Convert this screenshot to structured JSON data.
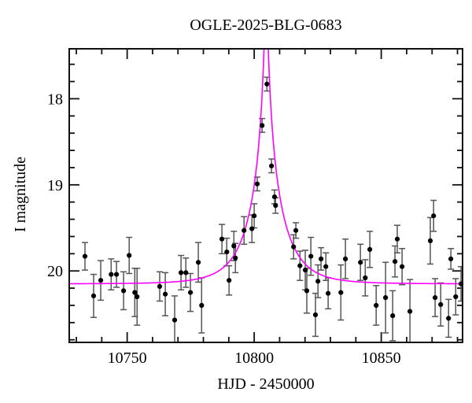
{
  "chart_data": {
    "type": "scatter",
    "title": "OGLE-2025-BLG-0683",
    "xlabel": "HJD - 2450000",
    "ylabel": "I magnitude",
    "xlim": [
      10727.2,
      10882.0
    ],
    "ylim": [
      17.42,
      20.83
    ],
    "y_axis_inverted": true,
    "x_major_ticks": [
      10750,
      10800,
      10850
    ],
    "x_minor_step": 10,
    "x_minor_range": [
      10730,
      10880
    ],
    "y_major_ticks": [
      18,
      19,
      20
    ],
    "y_minor_step": 0.2,
    "y_minor_range": [
      17.6,
      20.8
    ],
    "grid": false,
    "legend": "none",
    "colors": {
      "model_curve": "#ff00ff",
      "data_points": "#000000",
      "error_bars": "#555555",
      "frame": "#111111",
      "background": "#ffffff"
    },
    "model": {
      "name": "paczynski-microlensing",
      "t0": 10804.7,
      "tE": 13.0,
      "u0": 0.05,
      "I_baseline": 20.15
    },
    "points": [
      {
        "t": 10733.4,
        "mag": 19.83,
        "err": 0.16
      },
      {
        "t": 10736.8,
        "mag": 20.29,
        "err": 0.25
      },
      {
        "t": 10739.6,
        "mag": 20.11,
        "err": 0.23
      },
      {
        "t": 10743.7,
        "mag": 20.04,
        "err": 0.18
      },
      {
        "t": 10745.8,
        "mag": 20.04,
        "err": 0.15
      },
      {
        "t": 10748.6,
        "mag": 20.23,
        "err": 0.22
      },
      {
        "t": 10750.8,
        "mag": 19.82,
        "err": 0.21
      },
      {
        "t": 10753.0,
        "mag": 20.25,
        "err": 0.28
      },
      {
        "t": 10753.9,
        "mag": 20.3,
        "err": 0.33
      },
      {
        "t": 10762.8,
        "mag": 20.18,
        "err": 0.17
      },
      {
        "t": 10765.0,
        "mag": 20.27,
        "err": 0.25
      },
      {
        "t": 10768.7,
        "mag": 20.57,
        "err": 0.28
      },
      {
        "t": 10771.2,
        "mag": 20.02,
        "err": 0.2
      },
      {
        "t": 10773.1,
        "mag": 20.02,
        "err": 0.17
      },
      {
        "t": 10774.9,
        "mag": 20.25,
        "err": 0.22
      },
      {
        "t": 10778.0,
        "mag": 19.9,
        "err": 0.23
      },
      {
        "t": 10779.3,
        "mag": 20.4,
        "err": 0.32
      },
      {
        "t": 10787.3,
        "mag": 19.63,
        "err": 0.17
      },
      {
        "t": 10789.2,
        "mag": 19.78,
        "err": 0.16
      },
      {
        "t": 10790.1,
        "mag": 20.11,
        "err": 0.17
      },
      {
        "t": 10792.0,
        "mag": 19.71,
        "err": 0.17
      },
      {
        "t": 10792.6,
        "mag": 19.85,
        "err": 0.17
      },
      {
        "t": 10796.0,
        "mag": 19.53,
        "err": 0.16
      },
      {
        "t": 10799.1,
        "mag": 19.51,
        "err": 0.16
      },
      {
        "t": 10800.0,
        "mag": 19.36,
        "err": 0.14
      },
      {
        "t": 10801.2,
        "mag": 18.99,
        "err": 0.08
      },
      {
        "t": 10803.1,
        "mag": 18.31,
        "err": 0.08
      },
      {
        "t": 10805.0,
        "mag": 17.83,
        "err": 0.08
      },
      {
        "t": 10806.8,
        "mag": 18.78,
        "err": 0.08
      },
      {
        "t": 10808.0,
        "mag": 19.14,
        "err": 0.08
      },
      {
        "t": 10808.4,
        "mag": 19.24,
        "err": 0.09
      },
      {
        "t": 10815.5,
        "mag": 19.72,
        "err": 0.14
      },
      {
        "t": 10816.4,
        "mag": 19.53,
        "err": 0.09
      },
      {
        "t": 10818.0,
        "mag": 19.94,
        "err": 0.17
      },
      {
        "t": 10820.1,
        "mag": 19.99,
        "err": 0.23
      },
      {
        "t": 10820.7,
        "mag": 20.23,
        "err": 0.26
      },
      {
        "t": 10822.3,
        "mag": 19.83,
        "err": 0.22
      },
      {
        "t": 10824.1,
        "mag": 20.51,
        "err": 0.25
      },
      {
        "t": 10825.1,
        "mag": 20.12,
        "err": 0.19
      },
      {
        "t": 10826.3,
        "mag": 19.86,
        "err": 0.13
      },
      {
        "t": 10828.2,
        "mag": 19.95,
        "err": 0.16
      },
      {
        "t": 10829.1,
        "mag": 20.26,
        "err": 0.18
      },
      {
        "t": 10834.1,
        "mag": 20.25,
        "err": 0.32
      },
      {
        "t": 10835.9,
        "mag": 19.86,
        "err": 0.23
      },
      {
        "t": 10841.8,
        "mag": 19.9,
        "err": 0.21
      },
      {
        "t": 10843.7,
        "mag": 20.08,
        "err": 0.21
      },
      {
        "t": 10845.5,
        "mag": 19.75,
        "err": 0.21
      },
      {
        "t": 10848.0,
        "mag": 20.4,
        "err": 0.23
      },
      {
        "t": 10851.7,
        "mag": 20.31,
        "err": 0.41
      },
      {
        "t": 10854.5,
        "mag": 20.52,
        "err": 0.29
      },
      {
        "t": 10855.4,
        "mag": 19.89,
        "err": 0.18
      },
      {
        "t": 10856.3,
        "mag": 19.63,
        "err": 0.16
      },
      {
        "t": 10858.2,
        "mag": 19.95,
        "err": 0.21
      },
      {
        "t": 10861.3,
        "mag": 20.47,
        "err": 0.37
      },
      {
        "t": 10869.3,
        "mag": 19.65,
        "err": 0.27
      },
      {
        "t": 10870.6,
        "mag": 19.36,
        "err": 0.18
      },
      {
        "t": 10871.2,
        "mag": 20.31,
        "err": 0.22
      },
      {
        "t": 10873.4,
        "mag": 20.39,
        "err": 0.25
      },
      {
        "t": 10876.5,
        "mag": 20.55,
        "err": 0.22
      },
      {
        "t": 10877.4,
        "mag": 19.86,
        "err": 0.12
      },
      {
        "t": 10879.3,
        "mag": 20.3,
        "err": 0.21
      },
      {
        "t": 10881.4,
        "mag": 20.15,
        "err": 0.2
      }
    ]
  }
}
